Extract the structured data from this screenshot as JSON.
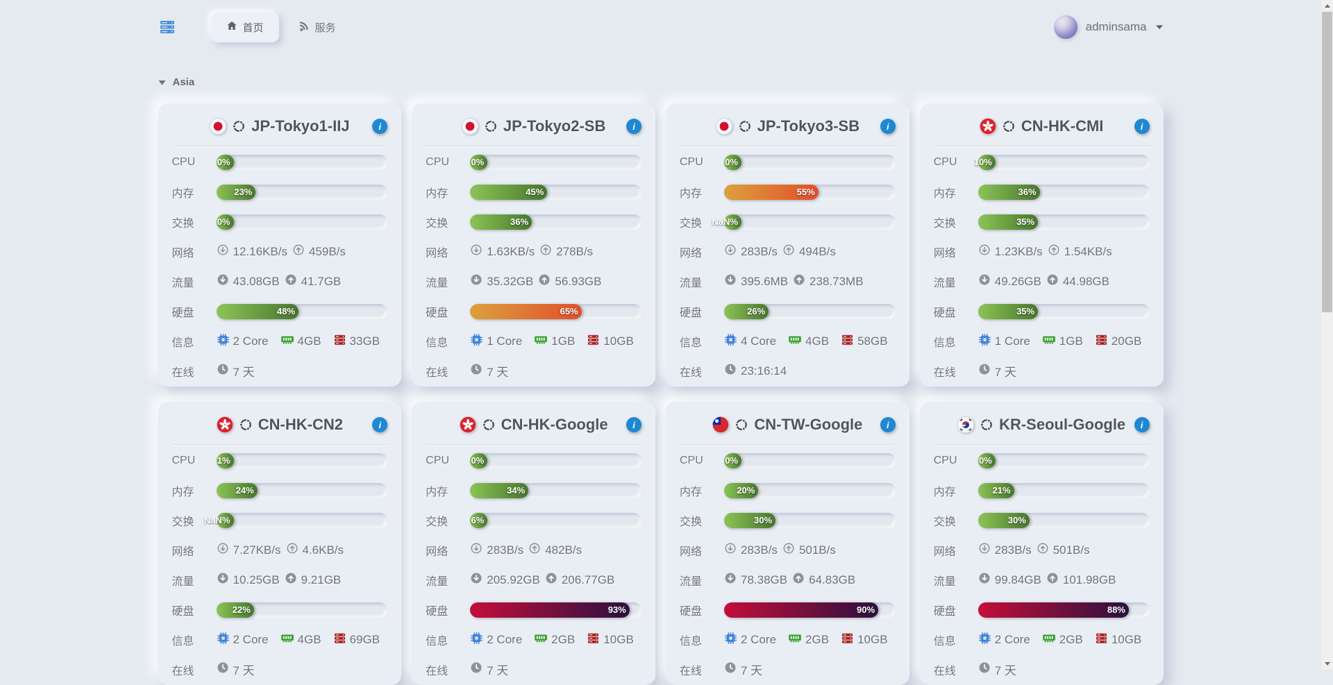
{
  "navbar": {
    "menu_icon": "server-stack-icon",
    "tabs": [
      {
        "label": "首页",
        "icon": "home-icon",
        "active": true
      },
      {
        "label": "服务",
        "icon": "rss-icon",
        "active": false
      }
    ],
    "user": {
      "name": "adminsama"
    }
  },
  "section": {
    "label": "Asia"
  },
  "row_labels": {
    "cpu": "CPU",
    "memory": "内存",
    "swap": "交换",
    "network": "网络",
    "traffic": "流量",
    "disk": "硬盘",
    "info": "信息",
    "online": "在线"
  },
  "colors": {
    "accent_blue": "#1e88d2",
    "bar_green_start": "#8cc455",
    "bar_green_end": "#47762e",
    "bar_orange_start": "#dda03c",
    "bar_orange_end": "#e24e2b",
    "bar_red_start": "#c40e3b",
    "bar_red_end": "#2b113f",
    "icon_cpu": "#4285d8",
    "icon_ram": "#2f9e1f",
    "icon_disk": "#ab2020"
  },
  "servers": [
    {
      "name": "JP-Tokyo1-IIJ",
      "flag": "jp",
      "os": "ubuntu",
      "cpu": {
        "label": "0%",
        "pct": 0,
        "level": "green"
      },
      "memory": {
        "label": "23%",
        "pct": 23,
        "level": "green"
      },
      "swap": {
        "label": "0%",
        "pct": 0,
        "level": "green"
      },
      "network": {
        "down": "12.16KB/s",
        "up": "459B/s"
      },
      "traffic": {
        "down": "43.08GB",
        "up": "41.7GB"
      },
      "disk": {
        "label": "48%",
        "pct": 48,
        "level": "green"
      },
      "info": {
        "cores": "2 Core",
        "ram": "4GB",
        "storage": "33GB"
      },
      "online": "7 天"
    },
    {
      "name": "JP-Tokyo2-SB",
      "flag": "jp",
      "os": "ubuntu",
      "cpu": {
        "label": "0%",
        "pct": 0,
        "level": "green"
      },
      "memory": {
        "label": "45%",
        "pct": 45,
        "level": "green"
      },
      "swap": {
        "label": "36%",
        "pct": 36,
        "level": "green"
      },
      "network": {
        "down": "1.63KB/s",
        "up": "278B/s"
      },
      "traffic": {
        "down": "35.32GB",
        "up": "56.93GB"
      },
      "disk": {
        "label": "65%",
        "pct": 65,
        "level": "orange"
      },
      "info": {
        "cores": "1 Core",
        "ram": "1GB",
        "storage": "10GB"
      },
      "online": "7 天"
    },
    {
      "name": "JP-Tokyo3-SB",
      "flag": "jp",
      "os": "ubuntu",
      "cpu": {
        "label": "0%",
        "pct": 0,
        "level": "green"
      },
      "memory": {
        "label": "55%",
        "pct": 55,
        "level": "orange"
      },
      "swap": {
        "label": "NaN%",
        "pct": null,
        "level": "green"
      },
      "network": {
        "down": "283B/s",
        "up": "494B/s"
      },
      "traffic": {
        "down": "395.6MB",
        "up": "238.73MB"
      },
      "disk": {
        "label": "26%",
        "pct": 26,
        "level": "green"
      },
      "info": {
        "cores": "4 Core",
        "ram": "4GB",
        "storage": "58GB"
      },
      "online": "23:16:14"
    },
    {
      "name": "CN-HK-CMI",
      "flag": "hk",
      "os": "ubuntu",
      "cpu": {
        "label": "10%",
        "pct": 10,
        "level": "green"
      },
      "memory": {
        "label": "36%",
        "pct": 36,
        "level": "green"
      },
      "swap": {
        "label": "35%",
        "pct": 35,
        "level": "green"
      },
      "network": {
        "down": "1.23KB/s",
        "up": "1.54KB/s"
      },
      "traffic": {
        "down": "49.26GB",
        "up": "44.98GB"
      },
      "disk": {
        "label": "35%",
        "pct": 35,
        "level": "green"
      },
      "info": {
        "cores": "1 Core",
        "ram": "1GB",
        "storage": "20GB"
      },
      "online": "7 天"
    },
    {
      "name": "CN-HK-CN2",
      "flag": "hk",
      "os": "ubuntu",
      "cpu": {
        "label": "1%",
        "pct": 1,
        "level": "green"
      },
      "memory": {
        "label": "24%",
        "pct": 24,
        "level": "green"
      },
      "swap": {
        "label": "NaN%",
        "pct": null,
        "level": "green"
      },
      "network": {
        "down": "7.27KB/s",
        "up": "4.6KB/s"
      },
      "traffic": {
        "down": "10.25GB",
        "up": "9.21GB"
      },
      "disk": {
        "label": "22%",
        "pct": 22,
        "level": "green"
      },
      "info": {
        "cores": "2 Core",
        "ram": "4GB",
        "storage": "69GB"
      },
      "online": "7 天"
    },
    {
      "name": "CN-HK-Google",
      "flag": "hk",
      "os": "ubuntu",
      "cpu": {
        "label": "0%",
        "pct": 0,
        "level": "green"
      },
      "memory": {
        "label": "34%",
        "pct": 34,
        "level": "green"
      },
      "swap": {
        "label": "6%",
        "pct": 6,
        "level": "green"
      },
      "network": {
        "down": "283B/s",
        "up": "482B/s"
      },
      "traffic": {
        "down": "205.92GB",
        "up": "206.77GB"
      },
      "disk": {
        "label": "93%",
        "pct": 93,
        "level": "red"
      },
      "info": {
        "cores": "2 Core",
        "ram": "2GB",
        "storage": "10GB"
      },
      "online": "7 天"
    },
    {
      "name": "CN-TW-Google",
      "flag": "tw",
      "os": "ubuntu",
      "cpu": {
        "label": "0%",
        "pct": 0,
        "level": "green"
      },
      "memory": {
        "label": "20%",
        "pct": 20,
        "level": "green"
      },
      "swap": {
        "label": "30%",
        "pct": 30,
        "level": "green"
      },
      "network": {
        "down": "283B/s",
        "up": "501B/s"
      },
      "traffic": {
        "down": "78.38GB",
        "up": "64.83GB"
      },
      "disk": {
        "label": "90%",
        "pct": 90,
        "level": "red"
      },
      "info": {
        "cores": "2 Core",
        "ram": "2GB",
        "storage": "10GB"
      },
      "online": "7 天"
    },
    {
      "name": "KR-Seoul-Google",
      "flag": "kr",
      "os": "ubuntu",
      "cpu": {
        "label": "0%",
        "pct": 0,
        "level": "green"
      },
      "memory": {
        "label": "21%",
        "pct": 21,
        "level": "green"
      },
      "swap": {
        "label": "30%",
        "pct": 30,
        "level": "green"
      },
      "network": {
        "down": "283B/s",
        "up": "501B/s"
      },
      "traffic": {
        "down": "99.84GB",
        "up": "101.98GB"
      },
      "disk": {
        "label": "88%",
        "pct": 88,
        "level": "red"
      },
      "info": {
        "cores": "2 Core",
        "ram": "2GB",
        "storage": "10GB"
      },
      "online": "7 天"
    }
  ]
}
